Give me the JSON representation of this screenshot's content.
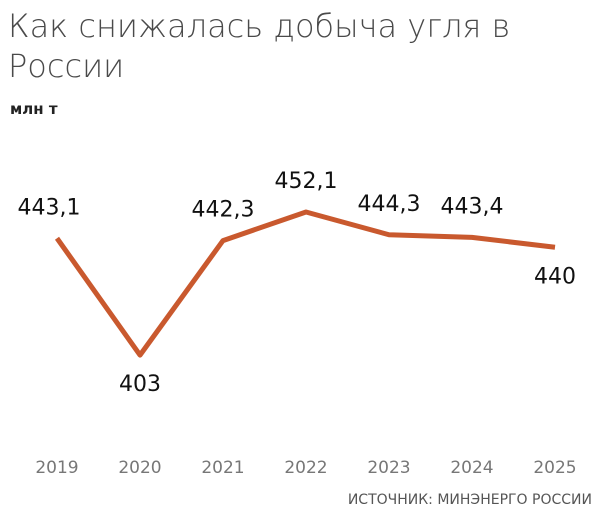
{
  "chart_data": {
    "type": "line",
    "title": "Как снижалась добыча угля в России",
    "y_label": "млн т",
    "categories": [
      "2019",
      "2020",
      "2021",
      "2022",
      "2023",
      "2024",
      "2025"
    ],
    "series": [
      {
        "color": "#c9592e",
        "values": [
          443.1,
          403,
          442.3,
          452.1,
          444.3,
          443.4,
          440
        ],
        "value_labels": [
          "443,1",
          "403",
          "442,3",
          "452,1",
          "444,3",
          "443,4",
          "440"
        ]
      }
    ],
    "ylim": [
      390,
      460
    ],
    "source": "ИСТОЧНИК: МИНЭНЕРГО РОССИИ"
  }
}
